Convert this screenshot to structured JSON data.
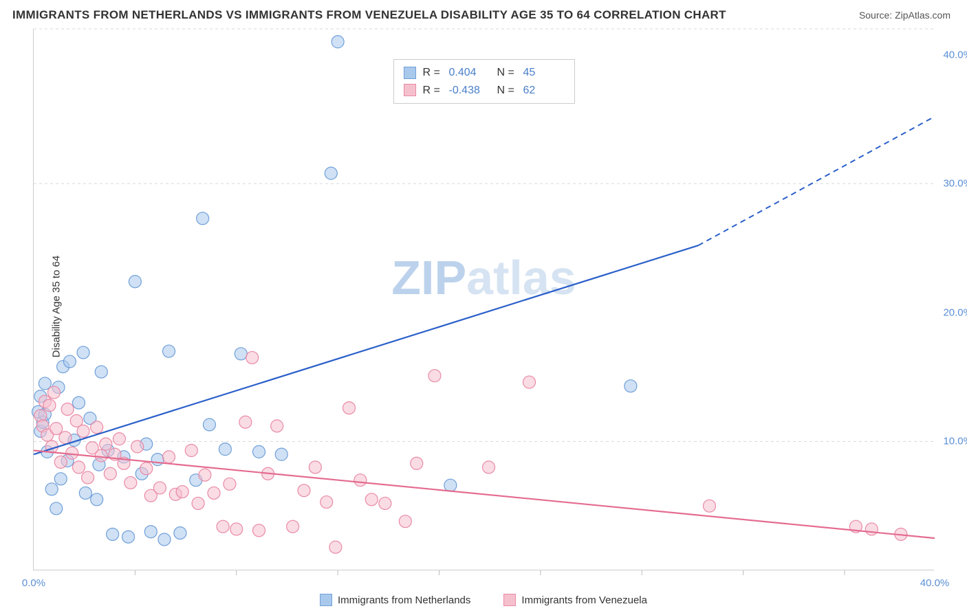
{
  "title": "IMMIGRANTS FROM NETHERLANDS VS IMMIGRANTS FROM VENEZUELA DISABILITY AGE 35 TO 64 CORRELATION CHART",
  "source_prefix": "Source: ",
  "source_link": "ZipAtlas.com",
  "ylabel": "Disability Age 35 to 64",
  "watermark_a": "ZIP",
  "watermark_b": "atlas",
  "chart": {
    "type": "scatter",
    "xlim": [
      0,
      40
    ],
    "ylim": [
      0,
      42
    ],
    "y_gridlines": [
      10,
      30
    ],
    "y_ticks": [
      {
        "v": 10,
        "l": "10.0%"
      },
      {
        "v": 20,
        "l": "20.0%"
      },
      {
        "v": 30,
        "l": "30.0%"
      },
      {
        "v": 40,
        "l": "40.0%"
      }
    ],
    "x_ticks_minor": [
      4.5,
      9,
      13.5,
      18,
      22.5,
      27,
      31.5,
      36
    ],
    "x_labels": [
      {
        "v": 0,
        "l": "0.0%"
      },
      {
        "v": 40,
        "l": "40.0%"
      }
    ],
    "background_color": "#ffffff",
    "grid_color": "#d8d8d8",
    "marker_radius": 9,
    "marker_opacity": 0.55,
    "series": [
      {
        "id": "netherlands",
        "label": "Immigrants from Netherlands",
        "fill": "#a9c9ec",
        "stroke": "#6f9fd8",
        "line_color": "#2a5fc9",
        "trend": {
          "x1": 0,
          "y1": 9,
          "x2": 29.5,
          "y2": 25.2,
          "x_dash": 40,
          "y_dash": 35.2
        },
        "stats": {
          "R": "0.404",
          "N": "45"
        },
        "points": [
          [
            0.2,
            12.3
          ],
          [
            0.3,
            10.8
          ],
          [
            0.3,
            13.5
          ],
          [
            0.4,
            11.5
          ],
          [
            0.5,
            12.1
          ],
          [
            0.5,
            14.5
          ],
          [
            0.6,
            9.2
          ],
          [
            0.8,
            6.3
          ],
          [
            1.0,
            4.8
          ],
          [
            1.1,
            14.2
          ],
          [
            1.2,
            7.1
          ],
          [
            1.3,
            15.8
          ],
          [
            1.5,
            8.5
          ],
          [
            1.6,
            16.2
          ],
          [
            1.8,
            10.1
          ],
          [
            2.0,
            13.0
          ],
          [
            2.2,
            16.9
          ],
          [
            2.3,
            6.0
          ],
          [
            2.5,
            11.8
          ],
          [
            2.8,
            5.5
          ],
          [
            2.9,
            8.2
          ],
          [
            3.0,
            15.4
          ],
          [
            3.3,
            9.3
          ],
          [
            3.5,
            2.8
          ],
          [
            4.0,
            8.8
          ],
          [
            4.2,
            2.6
          ],
          [
            4.5,
            22.4
          ],
          [
            4.8,
            7.5
          ],
          [
            5.0,
            9.8
          ],
          [
            5.2,
            3.0
          ],
          [
            5.5,
            8.6
          ],
          [
            5.8,
            2.4
          ],
          [
            6.0,
            17.0
          ],
          [
            6.5,
            2.9
          ],
          [
            7.2,
            7.0
          ],
          [
            7.5,
            27.3
          ],
          [
            7.8,
            11.3
          ],
          [
            8.5,
            9.4
          ],
          [
            9.2,
            16.8
          ],
          [
            10.0,
            9.2
          ],
          [
            11.0,
            9.0
          ],
          [
            13.2,
            30.8
          ],
          [
            13.5,
            41.0
          ],
          [
            18.5,
            6.6
          ],
          [
            26.5,
            14.3
          ]
        ]
      },
      {
        "id": "venezuela",
        "label": "Immigrants from Venezuela",
        "fill": "#f5c0cd",
        "stroke": "#e98aa5",
        "line_color": "#e46b8f",
        "trend": {
          "x1": 0,
          "y1": 9.3,
          "x2": 40,
          "y2": 2.5
        },
        "stats": {
          "R": "-0.438",
          "N": "62"
        },
        "points": [
          [
            0.3,
            12.0
          ],
          [
            0.4,
            11.2
          ],
          [
            0.5,
            13.1
          ],
          [
            0.6,
            10.5
          ],
          [
            0.7,
            12.8
          ],
          [
            0.8,
            9.6
          ],
          [
            0.9,
            13.8
          ],
          [
            1.0,
            11.0
          ],
          [
            1.2,
            8.4
          ],
          [
            1.4,
            10.3
          ],
          [
            1.5,
            12.5
          ],
          [
            1.7,
            9.1
          ],
          [
            1.9,
            11.6
          ],
          [
            2.0,
            8.0
          ],
          [
            2.2,
            10.8
          ],
          [
            2.4,
            7.2
          ],
          [
            2.6,
            9.5
          ],
          [
            2.8,
            11.1
          ],
          [
            3.0,
            8.9
          ],
          [
            3.2,
            9.8
          ],
          [
            3.4,
            7.5
          ],
          [
            3.6,
            9.0
          ],
          [
            3.8,
            10.2
          ],
          [
            4.0,
            8.3
          ],
          [
            4.3,
            6.8
          ],
          [
            4.6,
            9.6
          ],
          [
            5.0,
            7.9
          ],
          [
            5.2,
            5.8
          ],
          [
            5.6,
            6.4
          ],
          [
            6.0,
            8.8
          ],
          [
            6.3,
            5.9
          ],
          [
            6.6,
            6.1
          ],
          [
            7.0,
            9.3
          ],
          [
            7.3,
            5.2
          ],
          [
            7.6,
            7.4
          ],
          [
            8.0,
            6.0
          ],
          [
            8.4,
            3.4
          ],
          [
            8.7,
            6.7
          ],
          [
            9.0,
            3.2
          ],
          [
            9.4,
            11.5
          ],
          [
            9.7,
            16.5
          ],
          [
            10.0,
            3.1
          ],
          [
            10.4,
            7.5
          ],
          [
            10.8,
            11.2
          ],
          [
            11.5,
            3.4
          ],
          [
            12.0,
            6.2
          ],
          [
            12.5,
            8.0
          ],
          [
            13.0,
            5.3
          ],
          [
            13.4,
            1.8
          ],
          [
            14.0,
            12.6
          ],
          [
            14.5,
            7.0
          ],
          [
            15.0,
            5.5
          ],
          [
            15.6,
            5.2
          ],
          [
            16.5,
            3.8
          ],
          [
            17.0,
            8.3
          ],
          [
            17.8,
            15.1
          ],
          [
            20.2,
            8.0
          ],
          [
            22.0,
            14.6
          ],
          [
            30.0,
            5.0
          ],
          [
            36.5,
            3.4
          ],
          [
            37.2,
            3.2
          ],
          [
            38.5,
            2.8
          ]
        ]
      }
    ]
  },
  "stats_layout": {
    "R_label": "R =",
    "N_label": "N ="
  }
}
